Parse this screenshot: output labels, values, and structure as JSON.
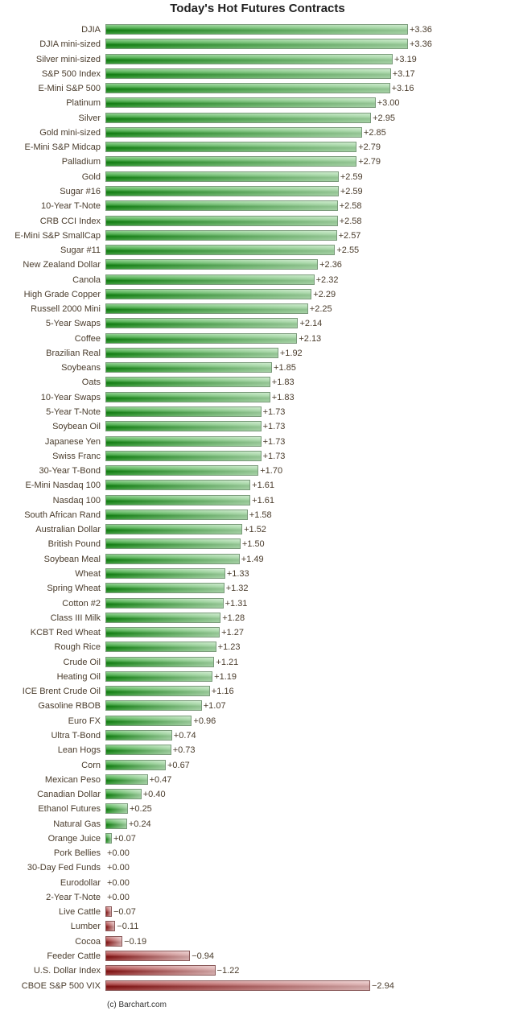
{
  "chart_data": {
    "type": "bar",
    "orientation": "horizontal",
    "title": "Today's Hot Futures Contracts",
    "credit": "(c) Barchart.com",
    "colors": {
      "positive": "#1a8a1a",
      "negative": "#8a1a1a"
    },
    "categories": [
      "DJIA",
      "DJIA mini-sized",
      "Silver mini-sized",
      "S&P 500 Index",
      "E-Mini S&P 500",
      "Platinum",
      "Silver",
      "Gold mini-sized",
      "E-Mini S&P Midcap",
      "Palladium",
      "Gold",
      "Sugar #16",
      "10-Year T-Note",
      "CRB CCI Index",
      "E-Mini S&P SmallCap",
      "Sugar #11",
      "New Zealand Dollar",
      "Canola",
      "High Grade Copper",
      "Russell 2000 Mini",
      "5-Year Swaps",
      "Coffee",
      "Brazilian Real",
      "Soybeans",
      "Oats",
      "10-Year Swaps",
      "5-Year T-Note",
      "Soybean Oil",
      "Japanese Yen",
      "Swiss Franc",
      "30-Year T-Bond",
      "E-Mini Nasdaq 100",
      "Nasdaq 100",
      "South African Rand",
      "Australian Dollar",
      "British Pound",
      "Soybean Meal",
      "Wheat",
      "Spring Wheat",
      "Cotton #2",
      "Class III Milk",
      "KCBT Red Wheat",
      "Rough Rice",
      "Crude Oil",
      "Heating Oil",
      "ICE Brent Crude Oil",
      "Gasoline RBOB",
      "Euro FX",
      "Ultra T-Bond",
      "Lean Hogs",
      "Corn",
      "Mexican Peso",
      "Canadian Dollar",
      "Ethanol Futures",
      "Natural Gas",
      "Orange Juice",
      "Pork Bellies",
      "30-Day Fed Funds",
      "Eurodollar",
      "2-Year T-Note",
      "Live Cattle",
      "Lumber",
      "Cocoa",
      "Feeder Cattle",
      "U.S. Dollar Index",
      "CBOE S&P 500 VIX"
    ],
    "values": [
      3.36,
      3.36,
      3.19,
      3.17,
      3.16,
      3.0,
      2.95,
      2.85,
      2.79,
      2.79,
      2.59,
      2.59,
      2.58,
      2.58,
      2.57,
      2.55,
      2.36,
      2.32,
      2.29,
      2.25,
      2.14,
      2.13,
      1.92,
      1.85,
      1.83,
      1.83,
      1.73,
      1.73,
      1.73,
      1.73,
      1.7,
      1.61,
      1.61,
      1.58,
      1.52,
      1.5,
      1.49,
      1.33,
      1.32,
      1.31,
      1.28,
      1.27,
      1.23,
      1.21,
      1.19,
      1.16,
      1.07,
      0.96,
      0.74,
      0.73,
      0.67,
      0.47,
      0.4,
      0.25,
      0.24,
      0.07,
      0.0,
      0.0,
      0.0,
      0.0,
      -0.07,
      -0.11,
      -0.19,
      -0.94,
      -1.22,
      -2.94
    ],
    "value_labels": [
      "+3.36",
      "+3.36",
      "+3.19",
      "+3.17",
      "+3.16",
      "+3.00",
      "+2.95",
      "+2.85",
      "+2.79",
      "+2.79",
      "+2.59",
      "+2.59",
      "+2.58",
      "+2.58",
      "+2.57",
      "+2.55",
      "+2.36",
      "+2.32",
      "+2.29",
      "+2.25",
      "+2.14",
      "+2.13",
      "+1.92",
      "+1.85",
      "+1.83",
      "+1.83",
      "+1.73",
      "+1.73",
      "+1.73",
      "+1.73",
      "+1.70",
      "+1.61",
      "+1.61",
      "+1.58",
      "+1.52",
      "+1.50",
      "+1.49",
      "+1.33",
      "+1.32",
      "+1.31",
      "+1.28",
      "+1.27",
      "+1.23",
      "+1.21",
      "+1.19",
      "+1.16",
      "+1.07",
      "+0.96",
      "+0.74",
      "+0.73",
      "+0.67",
      "+0.47",
      "+0.40",
      "+0.25",
      "+0.24",
      "+0.07",
      "+0.00",
      "+0.00",
      "+0.00",
      "+0.00",
      "-0.07",
      "-0.11",
      "-0.19",
      "-0.94",
      "-1.22",
      "-2.94"
    ],
    "xlim": [
      0,
      3.36
    ]
  }
}
